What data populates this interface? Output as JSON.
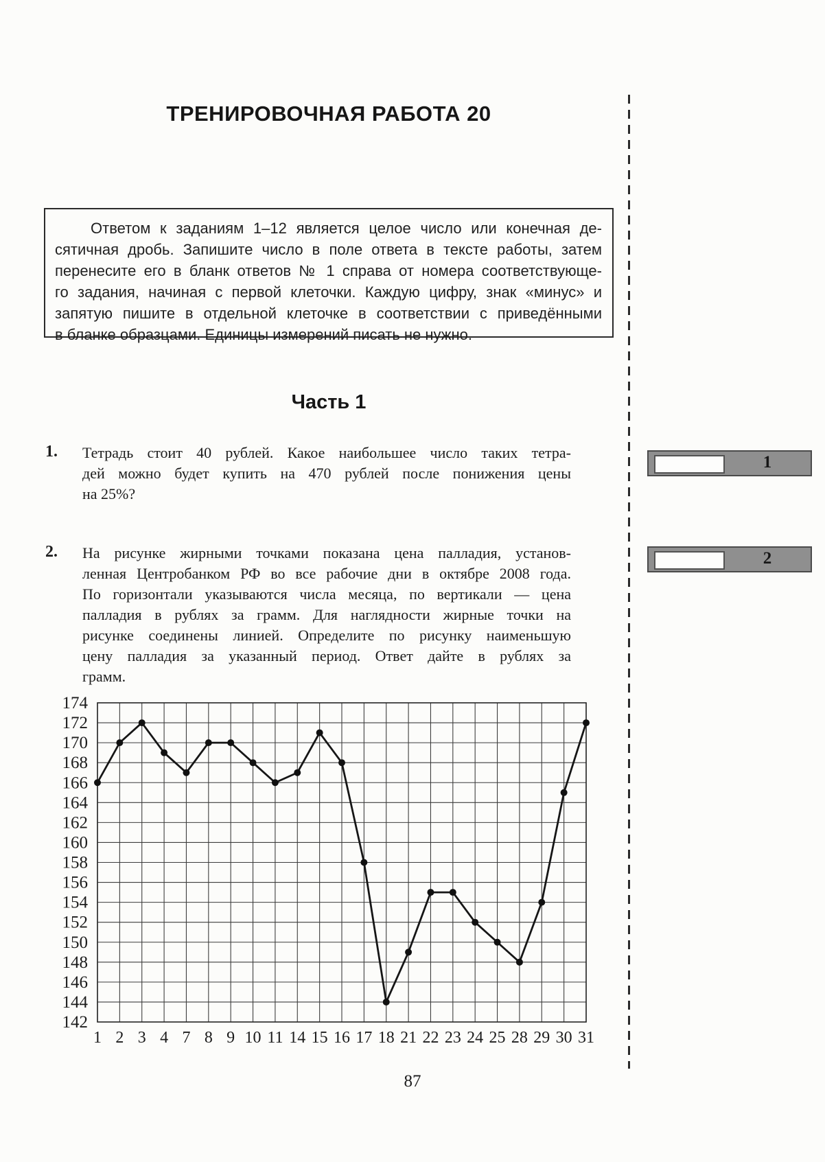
{
  "page": {
    "title": "ТРЕНИРОВОЧНАЯ РАБОТА 20",
    "part_heading": "Часть 1",
    "page_number": "87"
  },
  "instructions": {
    "lines": [
      "Ответом к заданиям 1–12 является целое число или конечная де-",
      "сятичная дробь. Запишите число в поле ответа в тексте работы, затем",
      "перенесите его в бланк ответов № 1 справа от номера соответствующе-",
      "го задания, начиная с первой клеточки. Каждую цифру, знак «минус» и",
      "запятую пишите в отдельной клеточке в соответствии с приведёнными",
      "в бланке образцами. Единицы измерений писать не нужно."
    ]
  },
  "problems": [
    {
      "number": "1.",
      "lines": [
        "Тетрадь стоит 40 рублей. Какое наибольшее число таких тетра-",
        "дей можно будет купить на 470 рублей после понижения цены",
        "на 25%?"
      ]
    },
    {
      "number": "2.",
      "lines": [
        "На рисунке жирными точками показана цена палладия, установ-",
        "ленная Центробанком РФ во все рабочие дни в октябре 2008 года.",
        "По горизонтали указываются числа месяца, по вертикали — цена",
        "палладия в рублях за грамм. Для наглядности жирные точки на",
        "рисунке соединены линией. Определите по рисунку наименьшую",
        "цену палладия за указанный период. Ответ дайте в рублях за",
        "грамм."
      ]
    }
  ],
  "answer_boxes": [
    {
      "label": "1"
    },
    {
      "label": "2"
    }
  ],
  "chart_data": {
    "type": "line",
    "title": "",
    "xlabel": "",
    "ylabel": "",
    "categories": [
      "1",
      "2",
      "3",
      "4",
      "7",
      "8",
      "9",
      "10",
      "11",
      "14",
      "15",
      "16",
      "17",
      "18",
      "21",
      "22",
      "23",
      "24",
      "25",
      "28",
      "29",
      "30",
      "31"
    ],
    "values": [
      166,
      170,
      172,
      169,
      167,
      170,
      170,
      168,
      166,
      167,
      171,
      168,
      158,
      144,
      149,
      155,
      155,
      152,
      150,
      148,
      154,
      165,
      172
    ],
    "ylim": [
      142,
      174
    ],
    "ytick_step": 2,
    "grid": true,
    "marker": "dot",
    "colors": {
      "line": "#161616",
      "grid": "#3d3d3d"
    }
  }
}
